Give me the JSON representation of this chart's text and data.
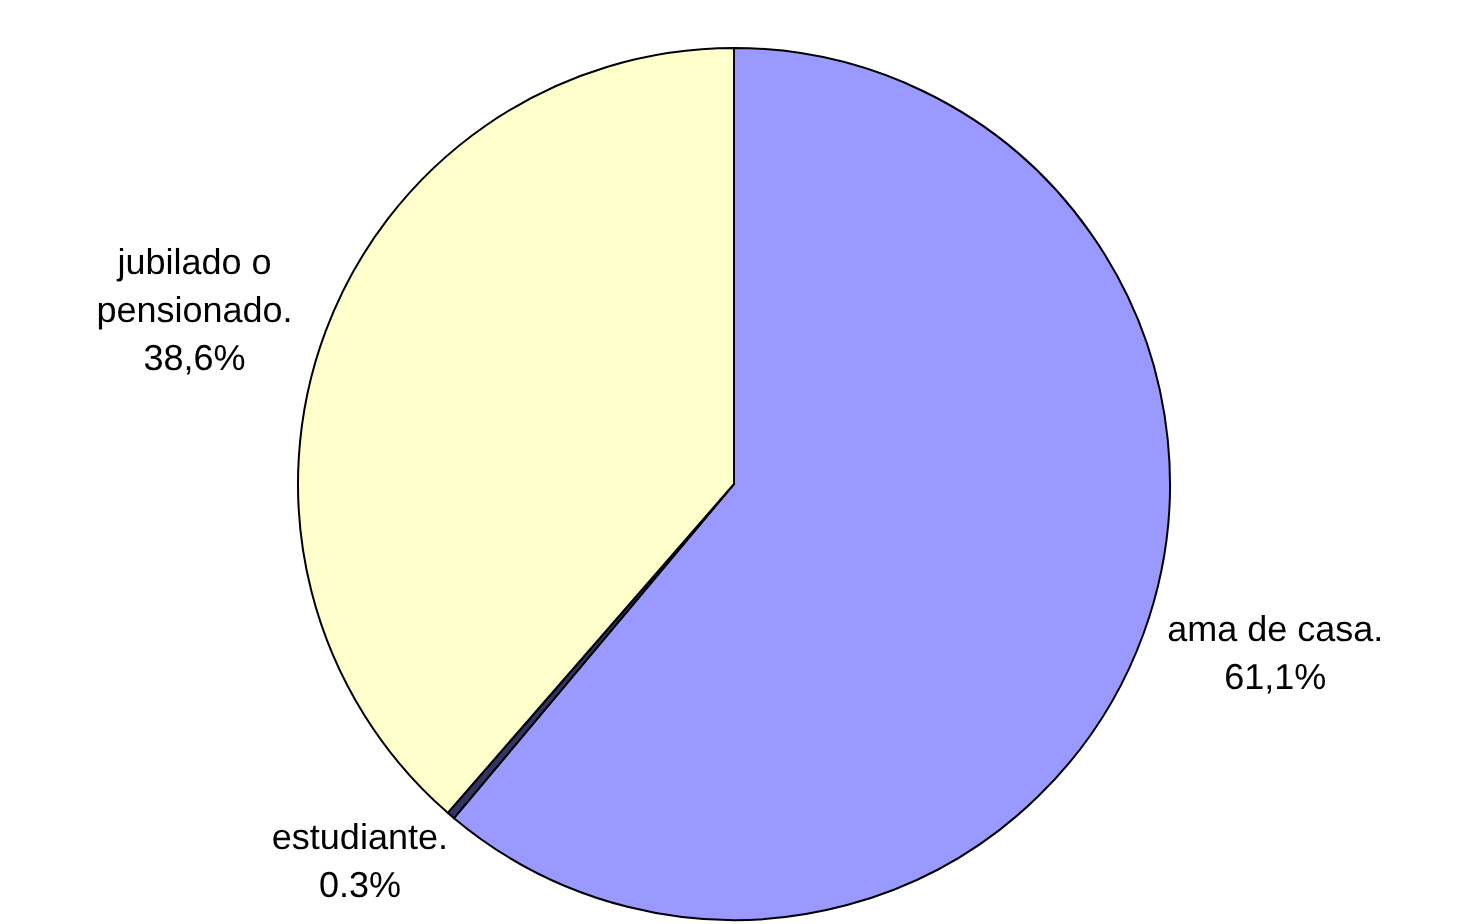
{
  "chart_data": {
    "type": "pie",
    "categories": [
      "ama de casa.",
      "estudiante.",
      "jubilado o pensionado."
    ],
    "values": [
      61.1,
      0.3,
      38.6
    ],
    "colors": [
      "#9999ff",
      "#333366",
      "#ffffcc"
    ],
    "value_labels": [
      "61,1%",
      "0.3%",
      "38,6%"
    ]
  }
}
